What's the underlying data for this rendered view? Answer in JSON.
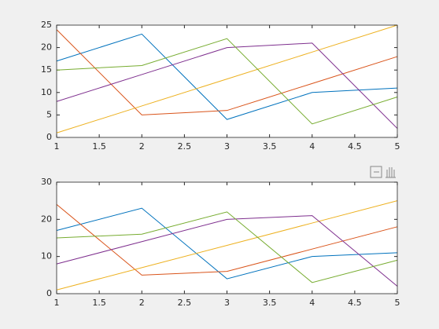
{
  "chart_data": [
    {
      "type": "line",
      "x": [
        1,
        2,
        3,
        4,
        5
      ],
      "series": [
        {
          "color": "#0072BD",
          "values": [
            17,
            23,
            4,
            10,
            11
          ]
        },
        {
          "color": "#D95319",
          "values": [
            24,
            5,
            6,
            12,
            18
          ]
        },
        {
          "color": "#EDB120",
          "values": [
            1,
            7,
            13,
            19,
            25
          ]
        },
        {
          "color": "#7E2F8E",
          "values": [
            8,
            14,
            20,
            21,
            2
          ]
        },
        {
          "color": "#77AC30",
          "values": [
            15,
            16,
            22,
            3,
            9
          ]
        }
      ],
      "xlim": [
        1,
        5
      ],
      "xticks": [
        1,
        1.5,
        2,
        2.5,
        3,
        3.5,
        4,
        4.5,
        5
      ],
      "ylim": [
        0,
        25
      ],
      "yticks": [
        0,
        5,
        10,
        15,
        20,
        25
      ]
    },
    {
      "type": "line",
      "x": [
        1,
        2,
        3,
        4,
        5
      ],
      "series": [
        {
          "color": "#0072BD",
          "values": [
            17,
            23,
            4,
            10,
            11
          ]
        },
        {
          "color": "#D95319",
          "values": [
            24,
            5,
            6,
            12,
            18
          ]
        },
        {
          "color": "#EDB120",
          "values": [
            1,
            7,
            13,
            19,
            25
          ]
        },
        {
          "color": "#7E2F8E",
          "values": [
            8,
            14,
            20,
            21,
            2
          ]
        },
        {
          "color": "#77AC30",
          "values": [
            15,
            16,
            22,
            3,
            9
          ]
        }
      ],
      "xlim": [
        1,
        5
      ],
      "xticks": [
        1,
        1.5,
        2,
        2.5,
        3,
        3.5,
        4,
        4.5,
        5
      ],
      "ylim": [
        0,
        30
      ],
      "yticks": [
        0,
        10,
        20,
        30
      ]
    }
  ]
}
